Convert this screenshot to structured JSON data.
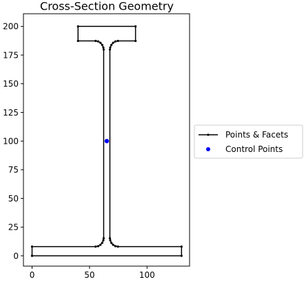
{
  "chart_data": {
    "type": "line",
    "title": "Cross-Section Geometry",
    "xlabel": "",
    "ylabel": "",
    "xlim": [
      -7.5,
      137
    ],
    "ylim": [
      -9,
      211
    ],
    "x_ticks": [
      0,
      50,
      100
    ],
    "y_ticks": [
      0,
      25,
      50,
      75,
      100,
      125,
      150,
      175,
      200
    ],
    "grid": false,
    "legend_position": "right-outside",
    "series": [
      {
        "name": "Points & Facets",
        "style": "line-with-points",
        "color": "#000000",
        "x": [
          0,
          130,
          130,
          74.7,
          72.5,
          70.5,
          69.0,
          68.0,
          67.7,
          67.7,
          68.0,
          69.0,
          70.5,
          72.5,
          74.7,
          90,
          90,
          40,
          40,
          55.3,
          57.5,
          59.5,
          61.0,
          62.0,
          62.3,
          62.3,
          62.0,
          61.0,
          59.5,
          57.5,
          55.3,
          0,
          0
        ],
        "y": [
          0,
          0,
          8,
          8,
          8.4,
          9.6,
          11.3,
          13.5,
          15.3,
          179.8,
          181.6,
          183.8,
          185.7,
          186.9,
          187.3,
          187.3,
          200,
          200,
          187.3,
          187.3,
          186.9,
          185.7,
          183.8,
          181.6,
          179.8,
          15.3,
          13.5,
          11.3,
          9.6,
          8.4,
          8,
          8,
          0
        ]
      },
      {
        "name": "Control Points",
        "style": "points",
        "color": "#0000ff",
        "x": [
          65
        ],
        "y": [
          100
        ]
      }
    ]
  }
}
